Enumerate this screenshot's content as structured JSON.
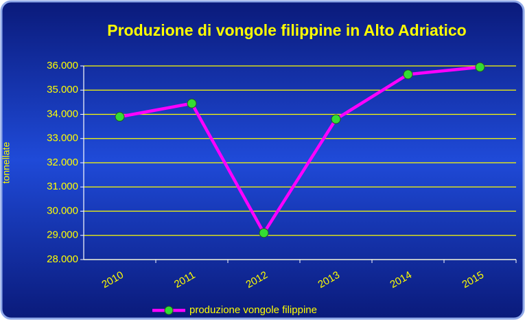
{
  "chart_data": {
    "type": "line",
    "title": "Produzione di vongole filippine in Alto Adriatico",
    "y_label": "tonnellate",
    "categories": [
      "2010",
      "2011",
      "2012",
      "2013",
      "2014",
      "2015"
    ],
    "series": [
      {
        "name": "produzione vongole filippine",
        "color": "#ff00ff",
        "marker_color": "#33dd33",
        "values": [
          33900,
          34450,
          29100,
          33800,
          35650,
          35950
        ]
      }
    ],
    "ylim": [
      28000,
      36000
    ],
    "yticks": [
      {
        "value": 28000,
        "label": "28.000"
      },
      {
        "value": 29000,
        "label": "29.000"
      },
      {
        "value": 30000,
        "label": "30.000"
      },
      {
        "value": 31000,
        "label": "31.000"
      },
      {
        "value": 32000,
        "label": "32.000"
      },
      {
        "value": 33000,
        "label": "33.000"
      },
      {
        "value": 34000,
        "label": "34.000"
      },
      {
        "value": 35000,
        "label": "35.000"
      },
      {
        "value": 36000,
        "label": "36.000"
      }
    ],
    "grid": true,
    "grid_color": "#ffff00",
    "legend": "bottom"
  }
}
